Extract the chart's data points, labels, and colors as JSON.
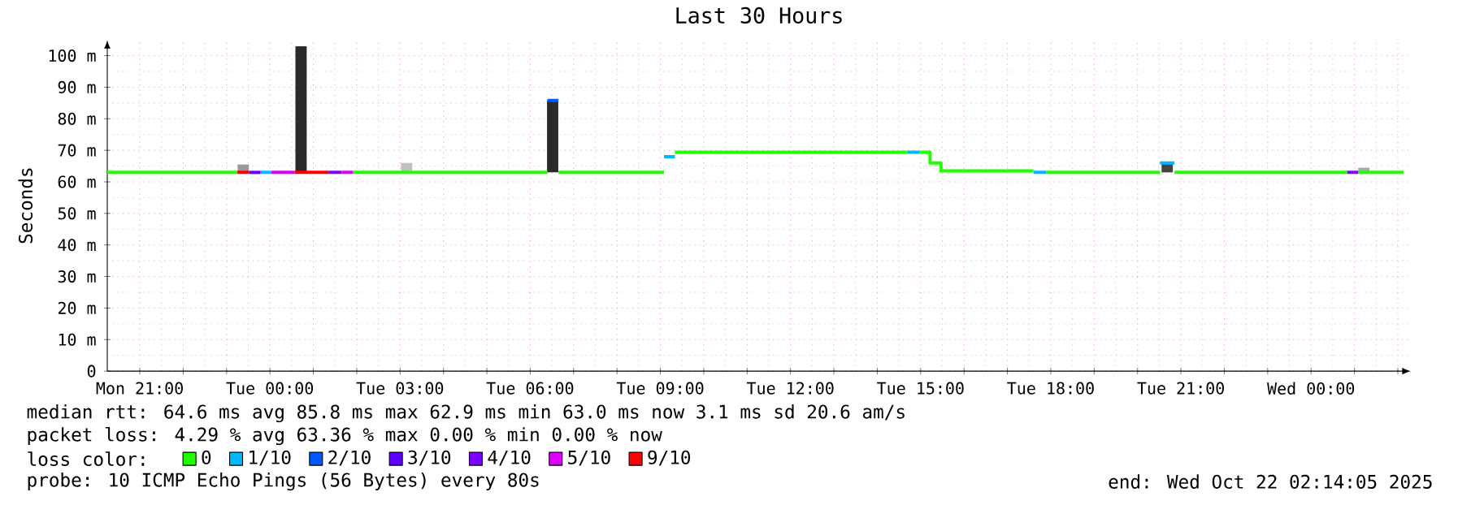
{
  "chart_data": {
    "type": "line",
    "title": "Last 30 Hours",
    "ylabel": "Seconds",
    "xlim": [
      "2025-10-20T20:15",
      "2025-10-22T02:18"
    ],
    "xticks": [
      {
        "value": "2025-10-20T21:00",
        "label": "Mon 21:00"
      },
      {
        "value": "2025-10-20T22:00",
        "label": null
      },
      {
        "value": "2025-10-20T23:00",
        "label": null
      },
      {
        "value": "2025-10-21T00:00",
        "label": "Tue 00:00"
      },
      {
        "value": "2025-10-21T01:00",
        "label": null
      },
      {
        "value": "2025-10-21T02:00",
        "label": null
      },
      {
        "value": "2025-10-21T03:00",
        "label": "Tue 03:00"
      },
      {
        "value": "2025-10-21T04:00",
        "label": null
      },
      {
        "value": "2025-10-21T05:00",
        "label": null
      },
      {
        "value": "2025-10-21T06:00",
        "label": "Tue 06:00"
      },
      {
        "value": "2025-10-21T07:00",
        "label": null
      },
      {
        "value": "2025-10-21T08:00",
        "label": null
      },
      {
        "value": "2025-10-21T09:00",
        "label": "Tue 09:00"
      },
      {
        "value": "2025-10-21T10:00",
        "label": null
      },
      {
        "value": "2025-10-21T11:00",
        "label": null
      },
      {
        "value": "2025-10-21T12:00",
        "label": "Tue 12:00"
      },
      {
        "value": "2025-10-21T13:00",
        "label": null
      },
      {
        "value": "2025-10-21T14:00",
        "label": null
      },
      {
        "value": "2025-10-21T15:00",
        "label": "Tue 15:00"
      },
      {
        "value": "2025-10-21T16:00",
        "label": null
      },
      {
        "value": "2025-10-21T17:00",
        "label": null
      },
      {
        "value": "2025-10-21T18:00",
        "label": "Tue 18:00"
      },
      {
        "value": "2025-10-21T19:00",
        "label": null
      },
      {
        "value": "2025-10-21T20:00",
        "label": null
      },
      {
        "value": "2025-10-21T21:00",
        "label": "Tue 21:00"
      },
      {
        "value": "2025-10-21T22:00",
        "label": null
      },
      {
        "value": "2025-10-21T23:00",
        "label": null
      },
      {
        "value": "2025-10-22T00:00",
        "label": "Wed 00:00"
      },
      {
        "value": "2025-10-22T01:00",
        "label": null
      },
      {
        "value": "2025-10-22T02:00",
        "label": null
      }
    ],
    "ylim": [
      0,
      105
    ],
    "yticks": [
      0,
      {
        "value": 10,
        "label": "10 m"
      },
      {
        "value": 20,
        "label": "20 m"
      },
      {
        "value": 30,
        "label": "30 m"
      },
      {
        "value": 40,
        "label": "40 m"
      },
      {
        "value": 50,
        "label": "50 m"
      },
      {
        "value": 60,
        "label": "60 m"
      },
      {
        "value": 70,
        "label": "70 m"
      },
      {
        "value": 80,
        "label": "80 m"
      },
      {
        "value": 90,
        "label": "90 m"
      },
      {
        "value": 100,
        "label": "100 m"
      }
    ],
    "grid": true,
    "legend": "bottom left",
    "legend_title": "loss color:",
    "marker": "none",
    "line_style": "solid",
    "series": [
      {
        "type": "bar",
        "colors": [
          "#999999",
          "#2a2a2a",
          "#c0c0c0",
          "#2a2a2a",
          "#444444",
          "#aaaaaa"
        ],
        "x": [
          "2025-10-20T23:23",
          "2025-10-21T00:43",
          "2025-10-21T03:09",
          "2025-10-21T06:31",
          "2025-10-21T20:41",
          "2025-10-22T01:13"
        ],
        "base": [
          63,
          63,
          63,
          63,
          63,
          63
        ],
        "values": [
          2.5,
          40,
          3,
          22.8,
          3,
          1.5
        ]
      },
      {
        "name": "0",
        "color": "#20ff00",
        "x": [
          "2025-10-20T20:15",
          "2025-10-20T23:15",
          null,
          "2025-10-21T01:55",
          "2025-10-21T06:24",
          null,
          "2025-10-21T06:39",
          "2025-10-21T09:05",
          null,
          "2025-10-21T09:20",
          "2025-10-21T14:42",
          null,
          "2025-10-21T14:58",
          "2025-10-21T15:13",
          "2025-10-21T15:13",
          "2025-10-21T15:28",
          "2025-10-21T15:28",
          "2025-10-21T17:36",
          null,
          "2025-10-21T17:54",
          "2025-10-21T20:31",
          null,
          "2025-10-21T20:51",
          "2025-10-22T00:50",
          null,
          "2025-10-22T01:05",
          "2025-10-22T02:08"
        ],
        "values": [
          63,
          63,
          null,
          63,
          63,
          null,
          63,
          63,
          null,
          69.4,
          69.4,
          null,
          69.4,
          69.4,
          66,
          66,
          63.5,
          63.5,
          null,
          63,
          63,
          null,
          63,
          63,
          null,
          63,
          63
        ]
      },
      {
        "name": "1/10",
        "color": "#00b8ff",
        "x": [
          "2025-10-20T23:47",
          "2025-10-21T00:02",
          null,
          "2025-10-21T09:05",
          "2025-10-21T09:20",
          null,
          "2025-10-21T14:42",
          "2025-10-21T14:58",
          null,
          "2025-10-21T17:36",
          "2025-10-21T17:54",
          null,
          "2025-10-21T20:31",
          "2025-10-21T20:51"
        ],
        "values": [
          63,
          63,
          null,
          68,
          68,
          null,
          69.4,
          69.4,
          null,
          63,
          63,
          null,
          66,
          66
        ]
      },
      {
        "name": "2/10",
        "color": "#0059ff",
        "x": [
          "2025-10-21T06:24",
          "2025-10-21T06:39"
        ],
        "values": [
          85.8,
          85.8
        ]
      },
      {
        "name": "3/10",
        "color": "#5e00ff",
        "x": [
          "2025-10-20T23:31",
          "2025-10-20T23:47"
        ],
        "values": [
          63,
          63
        ]
      },
      {
        "name": "4/10",
        "color": "#7e00ff",
        "x": [
          "2025-10-21T01:21",
          "2025-10-21T01:39",
          null,
          "2025-10-22T00:50",
          "2025-10-22T01:05"
        ],
        "values": [
          63,
          63,
          null,
          63,
          63
        ]
      },
      {
        "name": "5/10",
        "color": "#dd00ff",
        "x": [
          "2025-10-21T00:02",
          "2025-10-21T00:34",
          null,
          "2025-10-21T01:39",
          "2025-10-21T01:55"
        ],
        "values": [
          63,
          63,
          null,
          63,
          63
        ]
      },
      {
        "name": "9/10",
        "color": "#ff0000",
        "x": [
          "2025-10-20T23:15",
          "2025-10-20T23:31",
          null,
          "2025-10-21T00:34",
          "2025-10-21T01:21"
        ],
        "values": [
          63,
          63,
          null,
          63,
          63
        ]
      }
    ],
    "annotations": [
      "median rtt:  64.6 ms avg  85.8 ms max  62.9 ms min  63.0 ms now  3.1 ms sd  20.6   am/s",
      "packet loss: 4.29 % avg  63.36 % max  0.00 % min  0.00 % now",
      "probe:       10 ICMP Echo Pings (56 Bytes) every 80s",
      "end: Wed Oct 22 02:14:05 2025"
    ]
  }
}
